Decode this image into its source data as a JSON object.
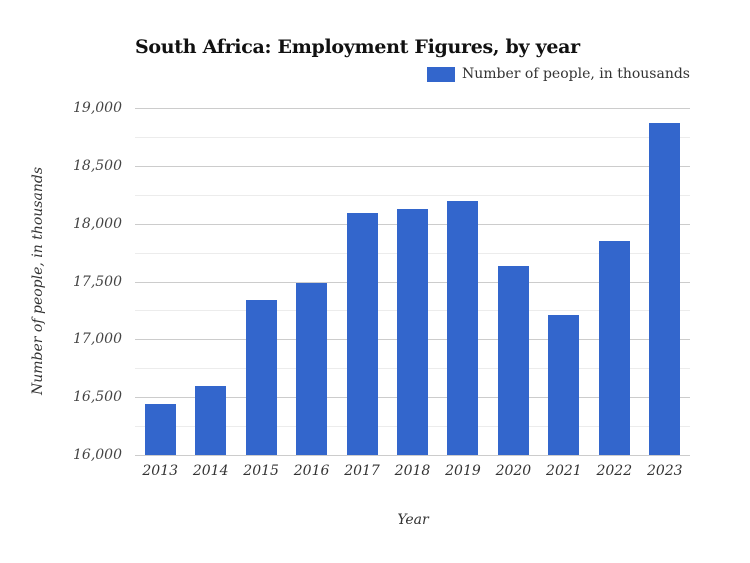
{
  "chart_data": {
    "type": "bar",
    "title": "South Africa: Employment Figures, by year",
    "xlabel": "Year",
    "ylabel": "Number of people, in thousands",
    "categories": [
      "2013",
      "2014",
      "2015",
      "2016",
      "2017",
      "2018",
      "2019",
      "2020",
      "2021",
      "2022",
      "2023"
    ],
    "series": [
      {
        "name": "Number of people, in thousands",
        "color": "#3366cc",
        "values": [
          16440,
          16600,
          17340,
          17490,
          18090,
          18130,
          18200,
          17630,
          17210,
          17850,
          18870
        ]
      }
    ],
    "ylim": [
      16000,
      19000
    ],
    "yticks": [
      16000,
      16500,
      17000,
      17500,
      18000,
      18500,
      19000
    ],
    "ytick_labels": [
      "16,000",
      "16,500",
      "17,000",
      "17,500",
      "18,000",
      "18,500",
      "19,000"
    ],
    "grid": true,
    "legend_position": "top-right"
  }
}
